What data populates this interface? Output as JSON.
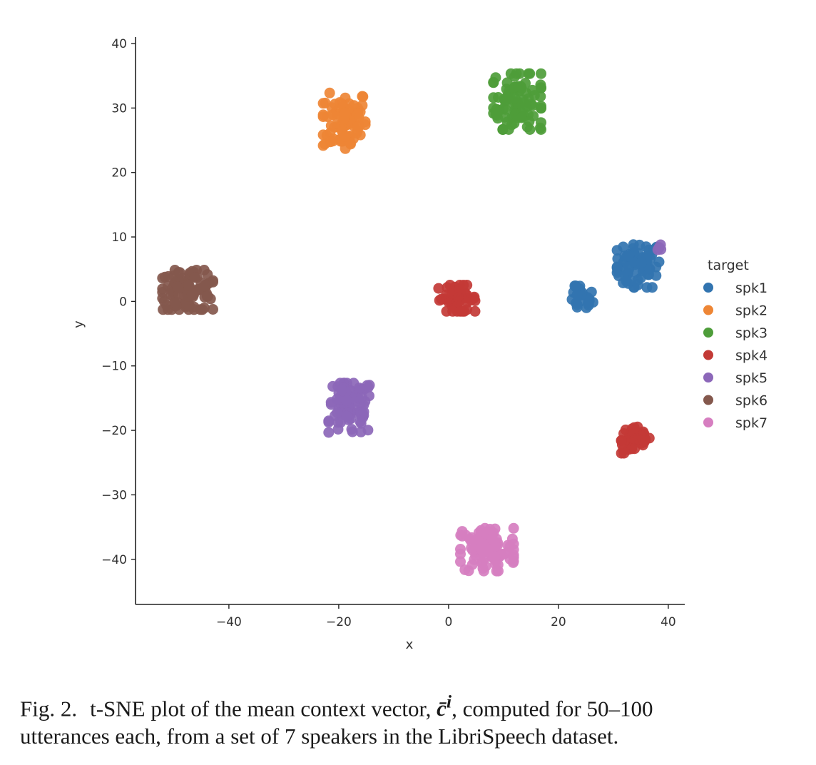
{
  "chart_data": {
    "type": "scatter",
    "xlabel": "x",
    "ylabel": "y",
    "xlim": [
      -57,
      43
    ],
    "ylim": [
      -47,
      41
    ],
    "xticks": [
      -40,
      -20,
      0,
      20,
      40
    ],
    "yticks": [
      40,
      30,
      20,
      10,
      0,
      -10,
      -20,
      -30,
      -40
    ],
    "xtick_labels": [
      "−40",
      "−20",
      "0",
      "20",
      "40"
    ],
    "ytick_labels": [
      "40",
      "30",
      "20",
      "10",
      "0",
      "−10",
      "−20",
      "−30",
      "−40"
    ],
    "legend_title": "target",
    "legend_position": "right",
    "series": [
      {
        "name": "spk1",
        "color": "#3274b0",
        "clusters": [
          {
            "cx": 34.5,
            "cy": 5.5,
            "sx": 3.0,
            "sy": 2.6,
            "n": 70
          },
          {
            "cx": 24.0,
            "cy": 0.5,
            "sx": 1.8,
            "sy": 1.5,
            "n": 25
          }
        ]
      },
      {
        "name": "spk2",
        "color": "#ee8635",
        "clusters": [
          {
            "cx": -19.0,
            "cy": 28.0,
            "sx": 3.0,
            "sy": 3.4,
            "n": 80
          }
        ]
      },
      {
        "name": "spk3",
        "color": "#4e9d3a",
        "clusters": [
          {
            "cx": 12.5,
            "cy": 31.0,
            "sx": 3.4,
            "sy": 3.4,
            "n": 90
          }
        ]
      },
      {
        "name": "spk4",
        "color": "#c33a36",
        "clusters": [
          {
            "cx": 1.5,
            "cy": 0.5,
            "sx": 2.6,
            "sy": 1.6,
            "n": 50
          },
          {
            "cx": 34.0,
            "cy": -21.5,
            "sx": 2.0,
            "sy": 1.6,
            "n": 45
          }
        ]
      },
      {
        "name": "spk5",
        "color": "#8c67b9",
        "clusters": [
          {
            "cx": -18.0,
            "cy": -16.5,
            "sx": 3.0,
            "sy": 3.0,
            "n": 85
          },
          {
            "cx": 38.5,
            "cy": 8.3,
            "sx": 0.6,
            "sy": 0.5,
            "n": 4
          }
        ]
      },
      {
        "name": "spk6",
        "color": "#84584d",
        "clusters": [
          {
            "cx": -47.5,
            "cy": 1.8,
            "sx": 3.6,
            "sy": 2.4,
            "n": 100
          }
        ]
      },
      {
        "name": "spk7",
        "color": "#d67ec0",
        "clusters": [
          {
            "cx": 7.0,
            "cy": -38.5,
            "sx": 3.8,
            "sy": 2.6,
            "n": 100
          }
        ]
      }
    ]
  },
  "caption": {
    "label": "Fig. 2.",
    "line1_text": "t-SNE plot of the mean context vector,",
    "math_symbol": "c̄",
    "math_superscript": "i",
    "line1_rest": ", computed for 50–100",
    "line2": "utterances each, from a set of 7 speakers in the LibriSpeech dataset."
  }
}
